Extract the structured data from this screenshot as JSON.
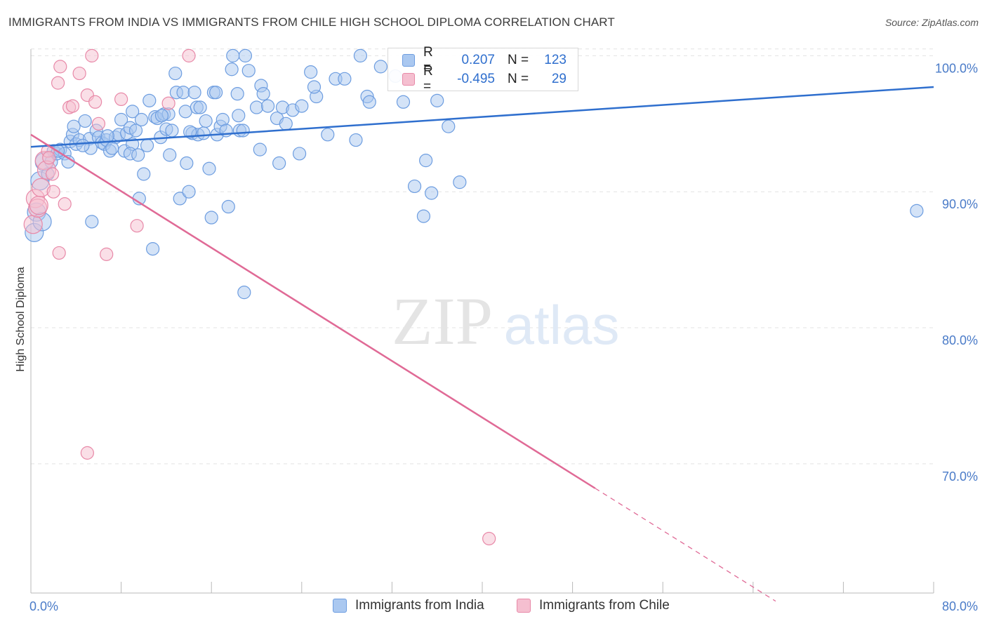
{
  "title": "IMMIGRANTS FROM INDIA VS IMMIGRANTS FROM CHILE HIGH SCHOOL DIPLOMA CORRELATION CHART",
  "source": "Source: ZipAtlas.com",
  "watermark": {
    "zip": "ZIP",
    "atlas": "atlas"
  },
  "legend": {
    "india": {
      "r_label": "R =",
      "r_value": "0.207",
      "n_label": "N =",
      "n_value": "123"
    },
    "chile": {
      "r_label": "R =",
      "r_value": "-0.495",
      "n_label": "N =",
      "n_value": "29"
    }
  },
  "colors": {
    "india": "#6d9de0",
    "india_fill": "#aac8f0",
    "chile": "#e889a8",
    "chile_fill": "#f5bfd0",
    "india_line": "#2f6fce",
    "chile_line": "#e06a96"
  },
  "chart_data": {
    "type": "scatter",
    "title": "IMMIGRANTS FROM INDIA VS IMMIGRANTS FROM CHILE HIGH SCHOOL DIPLOMA CORRELATION CHART",
    "xlabel": "",
    "ylabel": "High School Diploma",
    "xlim": [
      0,
      80
    ],
    "ylim": [
      60.5,
      101
    ],
    "x_tick_labels": [
      {
        "value": 0,
        "label": "0.0%"
      },
      {
        "value": 80,
        "label": "80.0%"
      }
    ],
    "y_tick_labels": [
      {
        "value": 100,
        "label": "100.0%"
      },
      {
        "value": 90,
        "label": "90.0%"
      },
      {
        "value": 80,
        "label": "80.0%"
      },
      {
        "value": 70,
        "label": "70.0%"
      }
    ],
    "legend_position": "top-center",
    "series": [
      {
        "name": "Immigrants from India",
        "points": [
          [
            0.3,
            87.0
          ],
          [
            0.5,
            88.5
          ],
          [
            0.8,
            90.8
          ],
          [
            1.0,
            87.8
          ],
          [
            1.2,
            92.2
          ],
          [
            1.5,
            91.3
          ],
          [
            1.8,
            92.2
          ],
          [
            2.0,
            93.0
          ],
          [
            2.3,
            92.8
          ],
          [
            2.6,
            93.1
          ],
          [
            3.0,
            92.8
          ],
          [
            3.3,
            92.2
          ],
          [
            3.5,
            93.7
          ],
          [
            3.7,
            94.2
          ],
          [
            3.8,
            94.8
          ],
          [
            4.0,
            93.5
          ],
          [
            4.3,
            93.8
          ],
          [
            4.8,
            95.2
          ],
          [
            5.2,
            93.9
          ],
          [
            5.3,
            93.2
          ],
          [
            5.4,
            87.8
          ],
          [
            5.8,
            94.5
          ],
          [
            6.0,
            94.0
          ],
          [
            6.3,
            93.6
          ],
          [
            6.5,
            93.5
          ],
          [
            6.7,
            93.8
          ],
          [
            7.0,
            93.0
          ],
          [
            7.5,
            94.0
          ],
          [
            7.8,
            94.2
          ],
          [
            7.2,
            93.2
          ],
          [
            8.0,
            95.3
          ],
          [
            8.3,
            93.0
          ],
          [
            8.5,
            94.3
          ],
          [
            8.8,
            94.7
          ],
          [
            9.0,
            95.9
          ],
          [
            9.3,
            94.5
          ],
          [
            9.0,
            93.5
          ],
          [
            8.8,
            92.8
          ],
          [
            9.5,
            92.7
          ],
          [
            9.8,
            95.3
          ],
          [
            9.6,
            89.5
          ],
          [
            10.0,
            91.3
          ],
          [
            10.3,
            93.4
          ],
          [
            10.5,
            96.7
          ],
          [
            10.8,
            85.8
          ],
          [
            11.0,
            95.5
          ],
          [
            11.2,
            95.4
          ],
          [
            11.5,
            94.0
          ],
          [
            11.8,
            95.7
          ],
          [
            12.0,
            94.6
          ],
          [
            12.2,
            95.7
          ],
          [
            12.3,
            92.7
          ],
          [
            12.5,
            94.5
          ],
          [
            12.8,
            98.7
          ],
          [
            12.9,
            97.3
          ],
          [
            13.2,
            89.5
          ],
          [
            13.5,
            97.3
          ],
          [
            13.7,
            95.9
          ],
          [
            13.8,
            92.1
          ],
          [
            14.0,
            90.0
          ],
          [
            14.3,
            94.3
          ],
          [
            14.5,
            97.3
          ],
          [
            14.7,
            96.2
          ],
          [
            14.8,
            94.2
          ],
          [
            15.0,
            96.2
          ],
          [
            15.3,
            94.3
          ],
          [
            15.5,
            95.2
          ],
          [
            15.8,
            91.7
          ],
          [
            16.0,
            88.1
          ],
          [
            16.2,
            97.3
          ],
          [
            16.4,
            97.3
          ],
          [
            16.5,
            94.2
          ],
          [
            16.8,
            94.8
          ],
          [
            17.0,
            95.3
          ],
          [
            17.3,
            94.5
          ],
          [
            17.5,
            88.9
          ],
          [
            17.8,
            99.0
          ],
          [
            17.9,
            100.0
          ],
          [
            18.3,
            97.2
          ],
          [
            18.4,
            95.6
          ],
          [
            18.5,
            94.5
          ],
          [
            18.8,
            94.5
          ],
          [
            19.0,
            100.0
          ],
          [
            19.3,
            98.9
          ],
          [
            18.9,
            82.6
          ],
          [
            20.0,
            96.2
          ],
          [
            20.3,
            93.1
          ],
          [
            20.4,
            97.8
          ],
          [
            20.6,
            97.2
          ],
          [
            21.0,
            96.3
          ],
          [
            21.8,
            95.4
          ],
          [
            22.0,
            92.1
          ],
          [
            22.3,
            96.2
          ],
          [
            22.6,
            95.0
          ],
          [
            23.2,
            96.0
          ],
          [
            23.8,
            92.8
          ],
          [
            24.0,
            96.3
          ],
          [
            24.8,
            98.8
          ],
          [
            25.3,
            97.0
          ],
          [
            25.1,
            97.7
          ],
          [
            26.3,
            94.2
          ],
          [
            27.0,
            98.3
          ],
          [
            27.8,
            98.3
          ],
          [
            28.8,
            93.8
          ],
          [
            29.2,
            100.0
          ],
          [
            29.8,
            97.0
          ],
          [
            30.0,
            96.6
          ],
          [
            31.0,
            99.2
          ],
          [
            32.3,
            98.5
          ],
          [
            33.0,
            96.6
          ],
          [
            34.0,
            90.4
          ],
          [
            34.8,
            88.2
          ],
          [
            35.0,
            92.3
          ],
          [
            35.5,
            89.9
          ],
          [
            36.0,
            96.7
          ],
          [
            37.0,
            94.8
          ],
          [
            38.0,
            90.7
          ],
          [
            78.5,
            88.6
          ],
          [
            2.4,
            93.0
          ],
          [
            4.6,
            93.4
          ],
          [
            6.8,
            94.1
          ],
          [
            11.6,
            95.6
          ],
          [
            14.1,
            94.4
          ]
        ]
      },
      {
        "name": "Immigrants from Chile",
        "points": [
          [
            0.2,
            87.6
          ],
          [
            0.4,
            89.5
          ],
          [
            0.6,
            88.8
          ],
          [
            0.7,
            89.0
          ],
          [
            0.9,
            90.3
          ],
          [
            1.2,
            92.3
          ],
          [
            1.4,
            91.6
          ],
          [
            1.5,
            93.0
          ],
          [
            1.6,
            92.5
          ],
          [
            1.9,
            91.3
          ],
          [
            2.0,
            90.0
          ],
          [
            2.4,
            98.0
          ],
          [
            2.6,
            99.2
          ],
          [
            3.0,
            89.1
          ],
          [
            3.4,
            96.2
          ],
          [
            3.7,
            96.3
          ],
          [
            4.3,
            98.7
          ],
          [
            5.0,
            97.1
          ],
          [
            5.0,
            70.8
          ],
          [
            5.4,
            100.0
          ],
          [
            5.7,
            96.6
          ],
          [
            6.0,
            95.0
          ],
          [
            6.7,
            85.4
          ],
          [
            8.0,
            96.8
          ],
          [
            9.4,
            87.5
          ],
          [
            12.2,
            96.5
          ],
          [
            14.0,
            100.0
          ],
          [
            2.5,
            85.5
          ],
          [
            40.6,
            64.5
          ]
        ]
      }
    ],
    "trend_lines": [
      {
        "series": "Immigrants from India",
        "x": [
          0,
          80
        ],
        "y": [
          93.3,
          97.7
        ]
      },
      {
        "series": "Immigrants from Chile",
        "x": [
          0,
          50
        ],
        "y": [
          94.2,
          68.2
        ],
        "dashed_extension": {
          "x": [
            50,
            66
          ],
          "y": [
            68.2,
            59.9
          ]
        }
      }
    ]
  }
}
